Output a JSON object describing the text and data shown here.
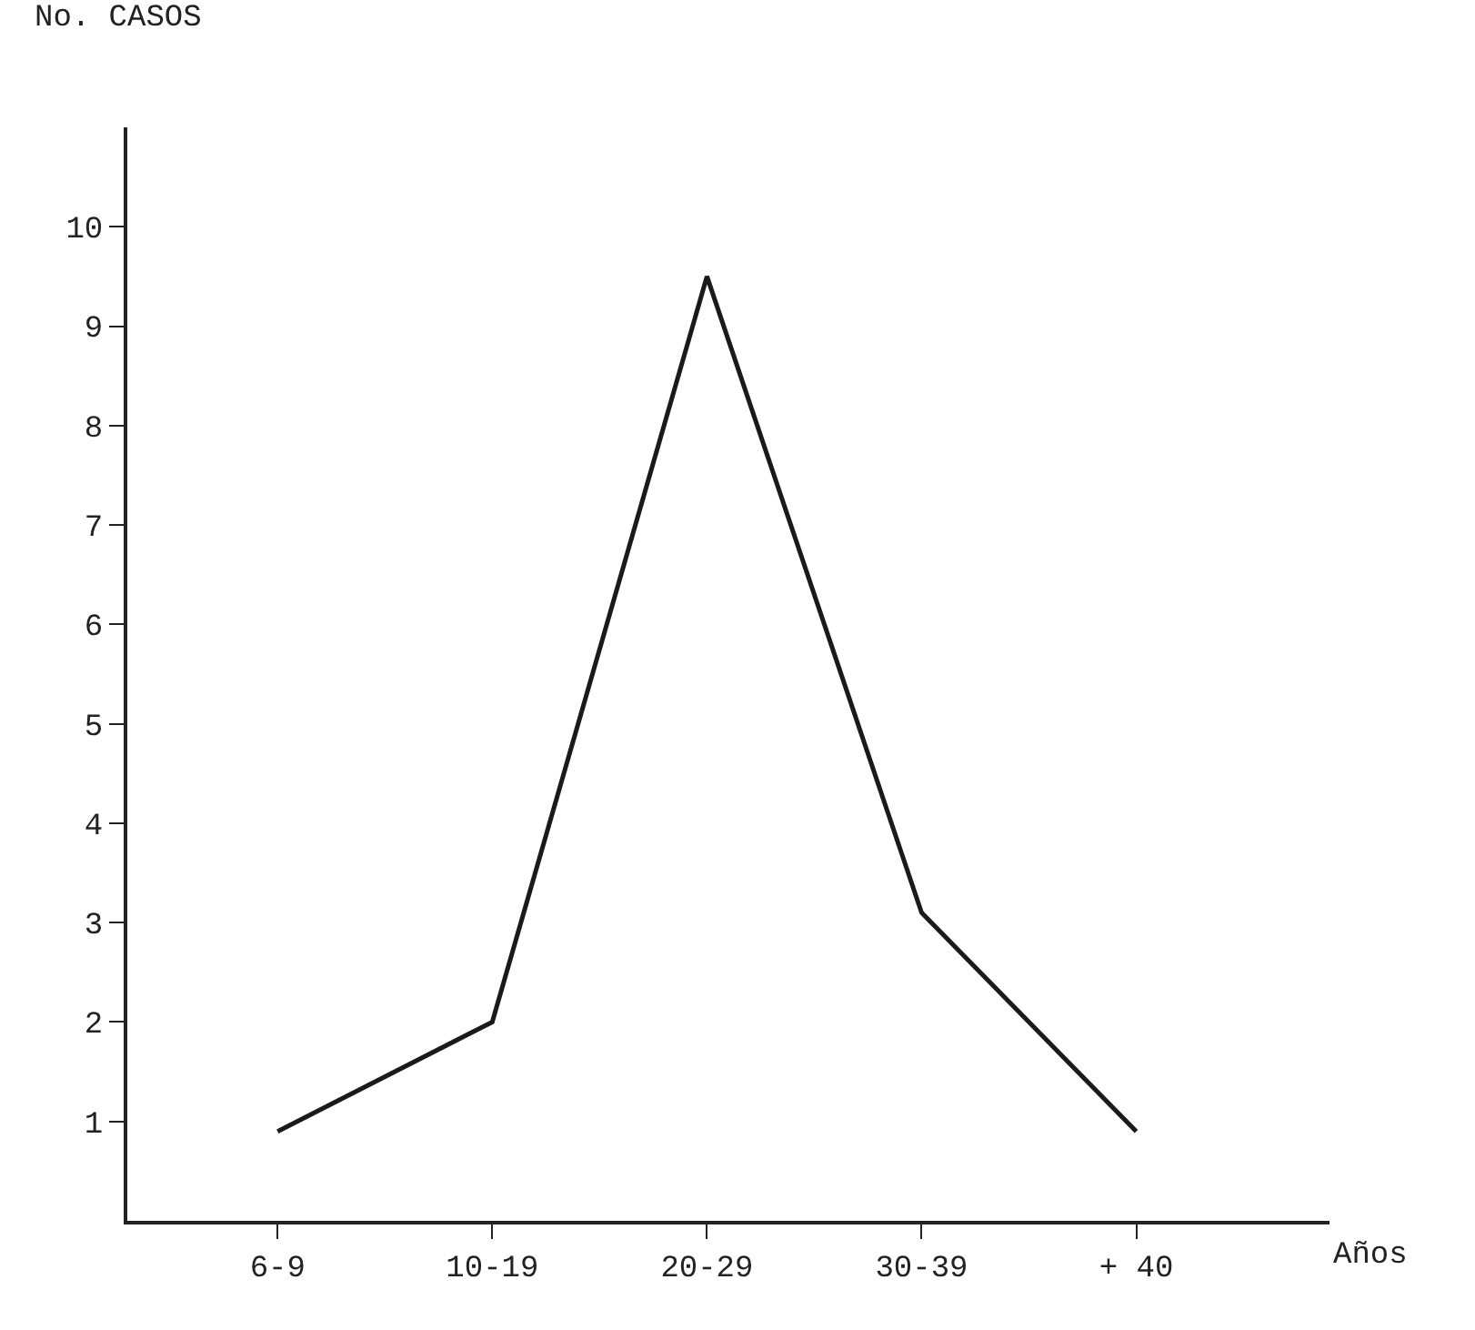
{
  "chart_data": {
    "type": "line",
    "ylabel": "No. CASOS",
    "xlabel": "Años",
    "categories": [
      "6-9",
      "10-19",
      "20-29",
      "30-39",
      "+ 40"
    ],
    "series": [
      {
        "color": "#1a1a1a",
        "values": [
          0.9,
          2,
          9.5,
          3.1,
          0.9
        ]
      }
    ],
    "ylim": [
      0,
      11
    ],
    "yticks": [
      1,
      2,
      3,
      4,
      5,
      6,
      7,
      8,
      9,
      10
    ],
    "grid": false,
    "marker": "none",
    "line_style": "solid"
  }
}
